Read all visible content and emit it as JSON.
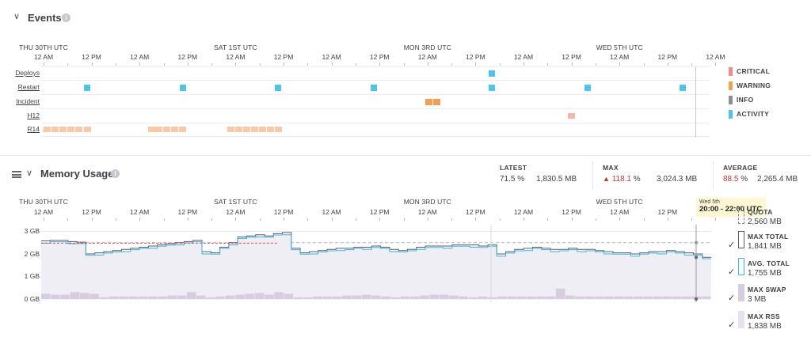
{
  "events": {
    "title": "Events",
    "rows": [
      "Deploys",
      "Restart",
      "Incident",
      "H12",
      "R14"
    ],
    "legend": [
      {
        "label": "CRITICAL",
        "color": "#e88c8c"
      },
      {
        "label": "WARNING",
        "color": "#f0a050"
      },
      {
        "label": "INFO",
        "color": "#8e8e96"
      },
      {
        "label": "ACTIVITY",
        "color": "#4ec3ec"
      }
    ]
  },
  "timeline": {
    "days": [
      "THU 30TH UTC",
      "SAT 1ST UTC",
      "MON 3RD UTC",
      "WED 5TH UTC"
    ],
    "hours": [
      "12 AM",
      "12 PM",
      "12 AM",
      "12 PM",
      "12 AM",
      "12 PM",
      "12 AM",
      "12 PM",
      "12 AM",
      "12 PM",
      "12 AM",
      "12 PM",
      "12 AM",
      "12 PM",
      "12 AM"
    ]
  },
  "memory": {
    "title": "Memory Usage",
    "stats": {
      "latest": {
        "label": "LATEST",
        "pct": "71.5 %",
        "mb": "1,830.5 MB"
      },
      "max": {
        "label": "MAX",
        "pct": "118.1",
        "pct_unit": "%",
        "mb": "3,024.3 MB"
      },
      "average": {
        "label": "AVERAGE",
        "pct": "88.5",
        "pct_unit": "%",
        "mb": "2,265.4 MB"
      }
    },
    "yaxis": [
      "3 GB",
      "2 GB",
      "1 GB",
      "0 GB"
    ],
    "tooltip": {
      "date": "Wed 5th",
      "range": "20:00 - 22:00 UTC"
    },
    "legend": [
      {
        "name": "QUOTA",
        "value": "2,560 MB",
        "check": ""
      },
      {
        "name": "MAX TOTAL",
        "value": "1,841 MB",
        "check": "✓"
      },
      {
        "name": "AVG. TOTAL",
        "value": "1,755 MB",
        "check": "✓"
      },
      {
        "name": "MAX SWAP",
        "value": "3 MB",
        "check": "✓"
      },
      {
        "name": "MAX RSS",
        "value": "1,838 MB",
        "check": "✓"
      }
    ]
  },
  "colors": {
    "activity": "#4ec3ec",
    "warning": "#f0a050",
    "critical": "#e88c8c",
    "r14": "#f8c9a8",
    "info": "#8e8e96",
    "max_total": "#5a5a66",
    "avg_total": "#3fb7e4",
    "rss_fill": "#e6e1ec",
    "swap_fill": "#d8cde0"
  }
}
